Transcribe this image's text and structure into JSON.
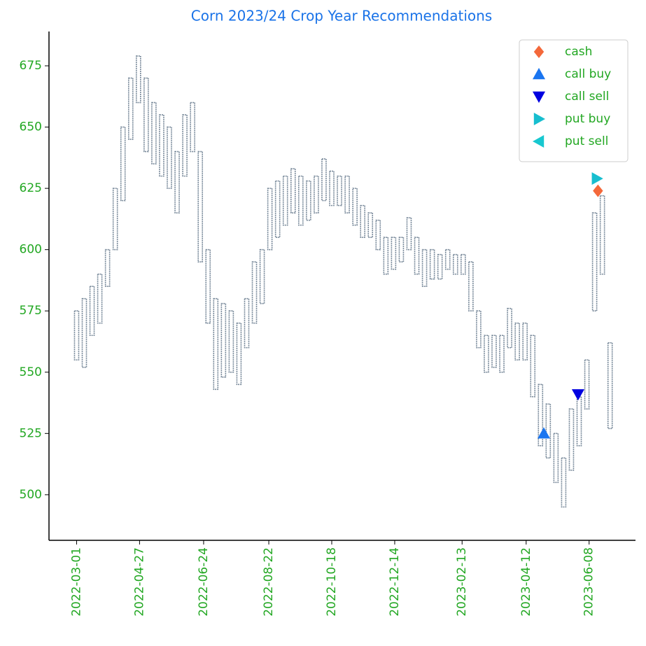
{
  "chart_data": {
    "type": "range-bar",
    "title": "Corn 2023/24 Crop Year Recommendations",
    "color": "#778899",
    "x": [
      "2022-03-01",
      "2022-03-08",
      "2022-03-15",
      "2022-03-22",
      "2022-03-29",
      "2022-04-05",
      "2022-04-12",
      "2022-04-19",
      "2022-04-26",
      "2022-05-03",
      "2022-05-10",
      "2022-05-17",
      "2022-05-24",
      "2022-05-31",
      "2022-06-07",
      "2022-06-14",
      "2022-06-21",
      "2022-06-28",
      "2022-07-05",
      "2022-07-12",
      "2022-07-19",
      "2022-07-26",
      "2022-08-02",
      "2022-08-09",
      "2022-08-16",
      "2022-08-23",
      "2022-08-30",
      "2022-09-06",
      "2022-09-13",
      "2022-09-20",
      "2022-09-27",
      "2022-10-04",
      "2022-10-11",
      "2022-10-18",
      "2022-10-25",
      "2022-11-01",
      "2022-11-08",
      "2022-11-15",
      "2022-11-22",
      "2022-11-29",
      "2022-12-06",
      "2022-12-13",
      "2022-12-20",
      "2022-12-27",
      "2023-01-03",
      "2023-01-10",
      "2023-01-17",
      "2023-01-24",
      "2023-01-31",
      "2023-02-07",
      "2023-02-14",
      "2023-02-21",
      "2023-02-28",
      "2023-03-07",
      "2023-03-14",
      "2023-03-21",
      "2023-03-28",
      "2023-04-04",
      "2023-04-11",
      "2023-04-18",
      "2023-04-25",
      "2023-05-02",
      "2023-05-09",
      "2023-05-16",
      "2023-05-23",
      "2023-05-30",
      "2023-06-06",
      "2023-06-13",
      "2023-06-20",
      "2023-06-27"
    ],
    "low": [
      555,
      552,
      565,
      570,
      585,
      600,
      620,
      645,
      660,
      640,
      635,
      630,
      625,
      615,
      630,
      640,
      595,
      570,
      543,
      548,
      550,
      545,
      560,
      570,
      578,
      600,
      605,
      610,
      615,
      610,
      612,
      615,
      620,
      618,
      618,
      615,
      610,
      605,
      605,
      600,
      590,
      592,
      595,
      600,
      590,
      585,
      588,
      588,
      592,
      590,
      590,
      575,
      560,
      550,
      552,
      550,
      560,
      555,
      555,
      540,
      520,
      515,
      505,
      495,
      510,
      520,
      535,
      575,
      590,
      527
    ],
    "high": [
      575,
      580,
      585,
      590,
      600,
      625,
      650,
      670,
      679,
      670,
      660,
      655,
      650,
      640,
      655,
      660,
      640,
      600,
      580,
      578,
      575,
      570,
      580,
      595,
      600,
      625,
      628,
      630,
      633,
      630,
      628,
      630,
      637,
      632,
      630,
      630,
      625,
      618,
      615,
      612,
      605,
      605,
      605,
      613,
      605,
      600,
      600,
      598,
      600,
      598,
      598,
      595,
      575,
      565,
      565,
      565,
      576,
      570,
      570,
      565,
      545,
      537,
      525,
      515,
      535,
      540,
      555,
      615,
      622,
      562
    ],
    "markers": [
      {
        "name": "cash",
        "color": "#f4683a",
        "shape": "diamond",
        "x": "2023-06-16",
        "y": 624
      },
      {
        "name": "call buy",
        "color": "#1a75f0",
        "shape": "up",
        "x": "2023-04-28",
        "y": 525
      },
      {
        "name": "call sell",
        "color": "#0000e0",
        "shape": "down",
        "x": "2023-05-29",
        "y": 541
      },
      {
        "name": "put buy",
        "color": "#17becf",
        "shape": "right",
        "x": "2023-06-15",
        "y": 629
      },
      {
        "name": "put sell",
        "color": "#17c8d0",
        "shape": "left"
      }
    ],
    "xlim": [
      "2022-02-04",
      "2023-07-20"
    ],
    "xticks": [
      "2022-03-01",
      "2022-04-27",
      "2022-06-24",
      "2022-08-22",
      "2022-10-18",
      "2022-12-14",
      "2023-02-13",
      "2023-04-12",
      "2023-06-08"
    ],
    "ylim": [
      481.4,
      689
    ],
    "yticks": [
      500,
      525,
      550,
      575,
      600,
      625,
      650,
      675
    ],
    "legend": "upper right"
  }
}
